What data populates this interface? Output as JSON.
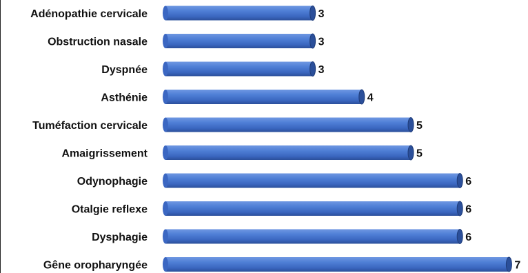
{
  "chart_data": {
    "type": "bar",
    "orientation": "horizontal",
    "categories": [
      "Adénopathie cervicale",
      "Obstruction nasale",
      "Dyspnée",
      "Asthénie",
      "Tuméfaction cervicale",
      "Amaigrissement",
      "Odynophagie",
      "Otalgie reflexe",
      "Dysphagie",
      "Gêne oropharyngée"
    ],
    "values": [
      3,
      3,
      3,
      4,
      5,
      5,
      6,
      6,
      6,
      7
    ],
    "title": "",
    "xlabel": "",
    "ylabel": "",
    "xlim": [
      0,
      7
    ],
    "grid": false,
    "legend": "none",
    "data_labels": true,
    "colors": {
      "bar": "#4472C4",
      "bar_dark": "#2F55A0",
      "bar_light": "#6A93DE",
      "text": "#111111"
    }
  }
}
